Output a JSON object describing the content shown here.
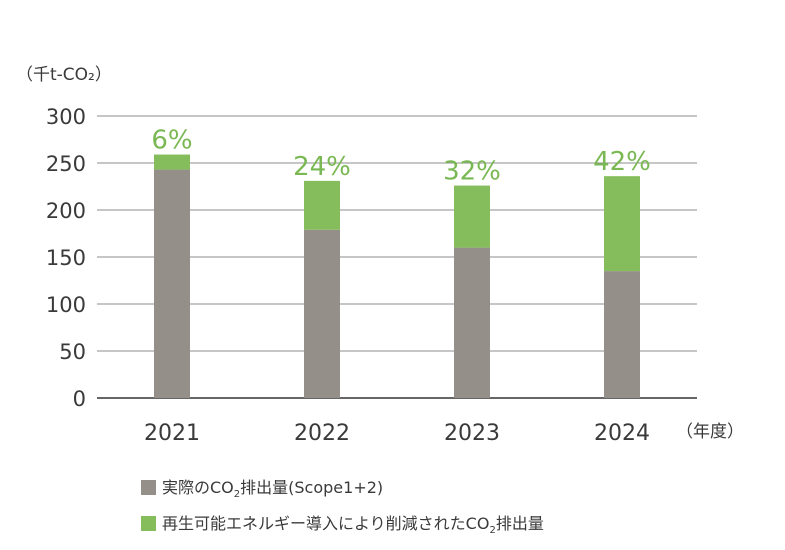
{
  "chart_data": {
    "type": "bar",
    "stacked": true,
    "y_unit_label": "（千t-CO₂）",
    "x_unit_label": "（年度）",
    "categories": [
      "2021",
      "2022",
      "2023",
      "2024"
    ],
    "series": [
      {
        "name": "実際のCO₂排出量(Scope1+2)",
        "color": "#958f8a",
        "values": [
          243,
          179,
          160,
          135
        ]
      },
      {
        "name": "再生可能エネルギー導入により削減されたCO₂排出量",
        "color": "#86bd5c",
        "values": [
          16,
          52,
          66,
          101
        ]
      }
    ],
    "annotations": [
      "6%",
      "24%",
      "32%",
      "42%"
    ],
    "ylim": [
      0,
      300
    ],
    "yticks": [
      0,
      50,
      100,
      150,
      200,
      250,
      300
    ],
    "grid": true,
    "legend_position": "bottom"
  },
  "legend": [
    {
      "pre": "実際のCO",
      "sub": "2",
      "post": "排出量(Scope1+2)",
      "color": "#958f8a"
    },
    {
      "pre": "再生可能エネルギー導入により削減されたCO",
      "sub": "2",
      "post": "排出量",
      "color": "#86bd5c"
    }
  ]
}
